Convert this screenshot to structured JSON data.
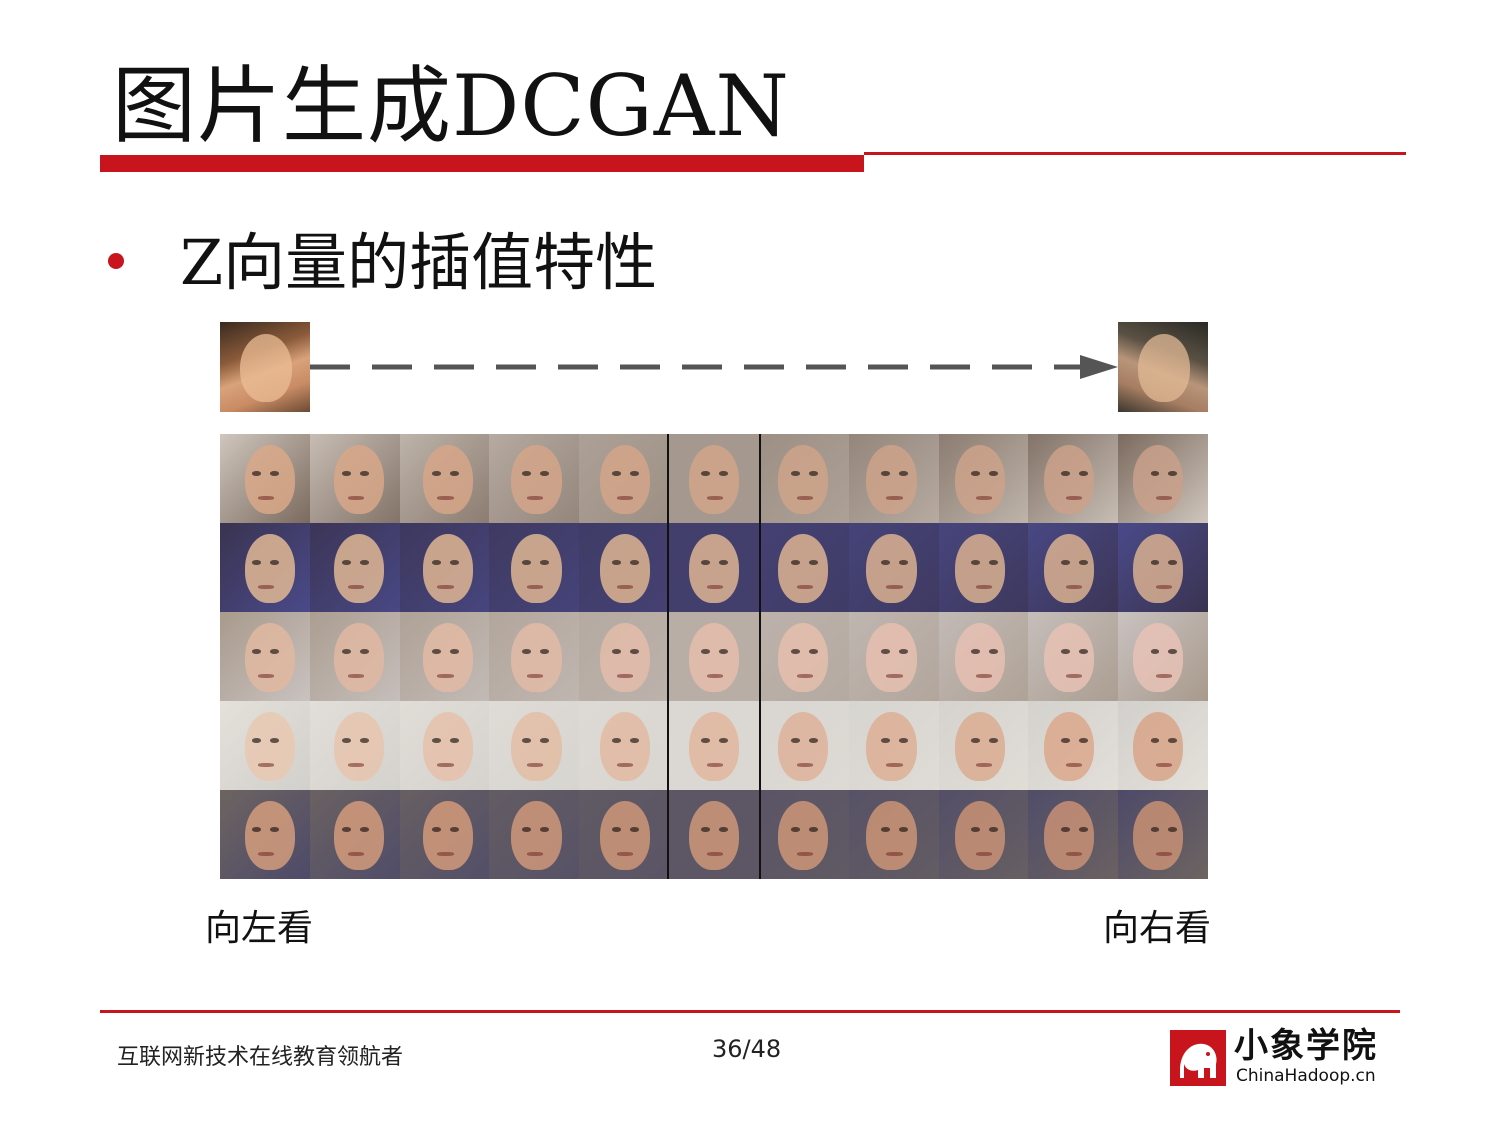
{
  "slide": {
    "title": "图片生成DCGAN",
    "bullet": "Z向量的插值特性",
    "label_left": "向左看",
    "label_right": "向右看",
    "footer_text": "互联网新技术在线教育领航者",
    "page_number": "36/48"
  },
  "logo": {
    "name": "小象学院",
    "site": "ChinaHadoop.cn"
  },
  "colors": {
    "accent": "#c8141c",
    "arrow": "#555555"
  },
  "figure": {
    "rows": 5,
    "columns": 11
  }
}
